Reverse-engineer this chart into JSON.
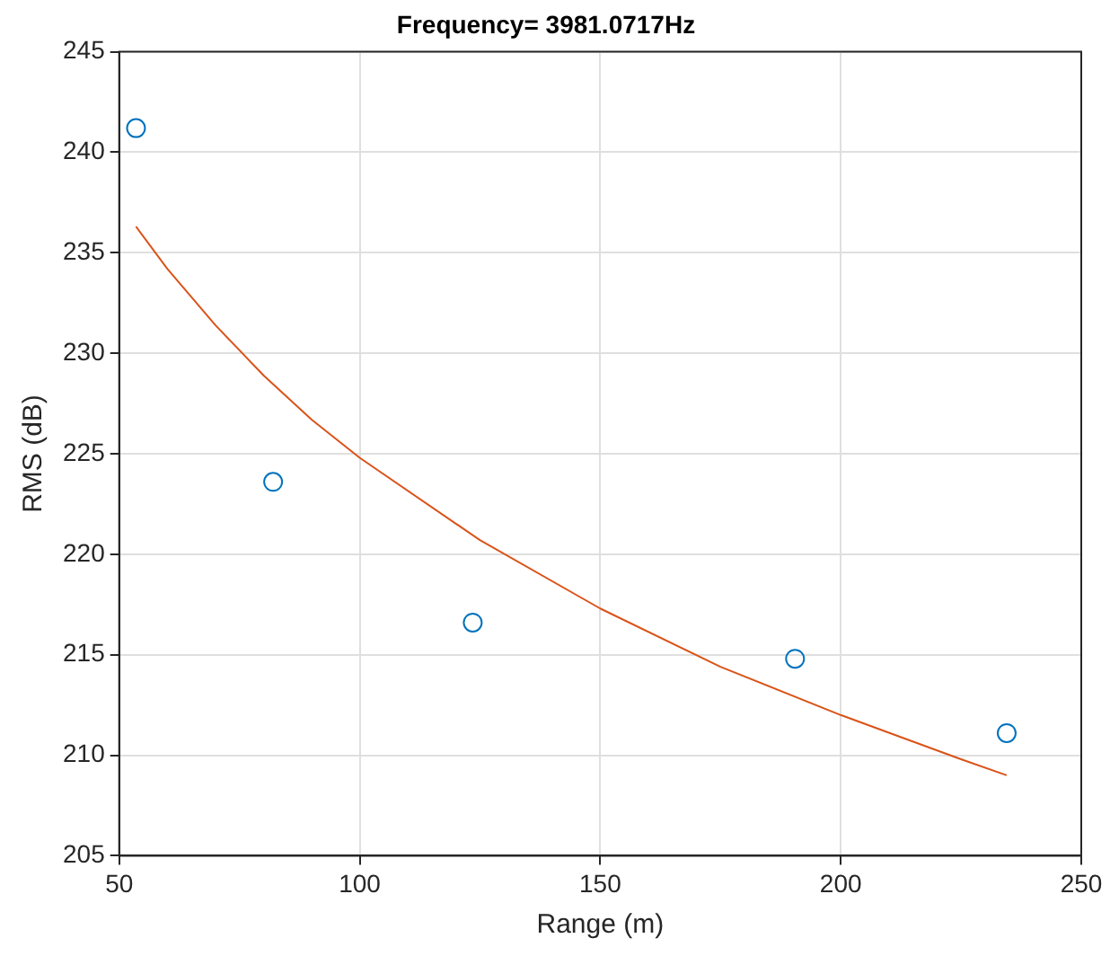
{
  "chart_data": {
    "type": "scatter",
    "title": "Frequency= 3981.0717Hz",
    "xlabel": "Range (m)",
    "ylabel": "RMS (dB)",
    "xlim": [
      50,
      250
    ],
    "xticks": [
      50,
      100,
      150,
      200,
      250
    ],
    "ylim": [
      205,
      245
    ],
    "yticks": [
      205,
      210,
      215,
      220,
      225,
      230,
      235,
      240,
      245
    ],
    "grid": true,
    "legend": false,
    "series": [
      {
        "type": "scatter",
        "color": "#0072bd",
        "marker": "circle",
        "x": [
          53.5,
          82,
          123.5,
          190.5,
          234.5
        ],
        "values": [
          241.2,
          223.6,
          216.6,
          214.8,
          211.1
        ]
      },
      {
        "type": "line",
        "color": "#d95319",
        "marker": "none",
        "x": [
          53.5,
          60,
          70,
          80,
          90,
          100,
          125,
          150,
          175,
          200,
          225,
          234.5
        ],
        "values": [
          236.3,
          234.2,
          231.4,
          228.9,
          226.7,
          224.8,
          220.7,
          217.3,
          214.4,
          212.0,
          209.8,
          209.0
        ]
      }
    ]
  }
}
